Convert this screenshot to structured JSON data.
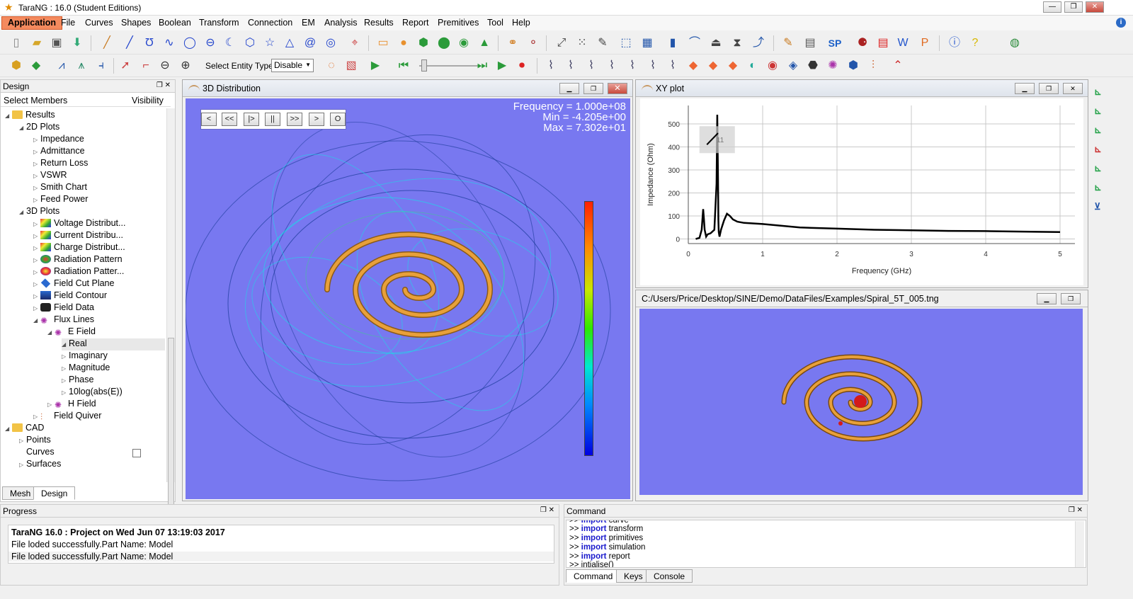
{
  "window": {
    "title": "TaraNG : 16.0 (Student Editions)"
  },
  "menu": [
    "Application",
    "File",
    "Curves",
    "Shapes",
    "Boolean",
    "Transform",
    "Connection",
    "EM",
    "Analysis",
    "Results",
    "Report",
    "Premitives",
    "Tool",
    "Help"
  ],
  "toolbar": {
    "select_entity_label": "Select Entity Type:",
    "select_entity_value": "Disable",
    "sp_label": "SP"
  },
  "design_panel": {
    "title": "Design",
    "col_members": "Select Members",
    "col_visibility": "Visibility",
    "tree": {
      "results": "Results",
      "plots2d": "2D Plots",
      "impedance": "Impedance",
      "admittance": "Admittance",
      "return_loss": "Return Loss",
      "vswr": "VSWR",
      "smith_chart": "Smith Chart",
      "feed_power": "Feed Power",
      "plots3d": "3D Plots",
      "voltage": "Voltage Distribut...",
      "current": "Current Distribu...",
      "charge": "Charge Distribut...",
      "radiation1": "Radiation Pattern",
      "radiation2": "Radiation Patter...",
      "field_cut": "Field Cut Plane",
      "field_contour": "Field Contour",
      "field_data": "Field Data",
      "flux_lines": "Flux Lines",
      "e_field": "E Field",
      "real": "Real",
      "imaginary": "Imaginary",
      "magnitude": "Magnitude",
      "phase": "Phase",
      "log": "10log(abs(E))",
      "h_field": "H Field",
      "field_quiver": "Field Quiver",
      "cad": "CAD",
      "points": "Points",
      "curves": "Curves",
      "surfaces": "Surfaces"
    },
    "tabs": [
      "Mesh",
      "Design"
    ]
  },
  "view3d": {
    "title": "3D Distribution",
    "playback": [
      "<",
      "<<",
      "|>",
      "||",
      ">>",
      ">",
      "O"
    ],
    "frequency": "Frequency = 1.000e+08",
    "min": "Min = -4.205e+00",
    "max": "Max = 7.302e+01"
  },
  "xyplot": {
    "title": "XY plot",
    "marker": "11"
  },
  "spiral_window": {
    "title": "C:/Users/Price/Desktop/SINE/Demo/DataFiles/Examples/Spiral_5T_005.tng"
  },
  "progress": {
    "title": "Progress",
    "lines": [
      "TaraNG 16.0 : Project on Wed Jun 07 13:19:03 2017",
      "File loded successfully.Part Name: Model",
      "File loded successfully.Part Name: Model"
    ]
  },
  "command": {
    "title": "Command",
    "lines": [
      {
        "p": ">>",
        "k": "import",
        "v": "curve"
      },
      {
        "p": ">>",
        "k": "import",
        "v": "transform"
      },
      {
        "p": ">>",
        "k": "import",
        "v": "primitives"
      },
      {
        "p": ">>",
        "k": "import",
        "v": "simulation"
      },
      {
        "p": ">>",
        "k": "import",
        "v": "report"
      },
      {
        "p": ">>",
        "k": "",
        "v": "intialise()"
      }
    ],
    "tabs": [
      "Command",
      "Keys",
      "Console"
    ]
  },
  "chart_data": {
    "type": "line",
    "title": "",
    "xlabel": "Frequency (GHz)",
    "ylabel": "Impedance (Ohm)",
    "xlim": [
      0,
      5.2
    ],
    "ylim": [
      -20,
      580
    ],
    "xticks": [
      0,
      1,
      2,
      3,
      4,
      5
    ],
    "yticks": [
      0,
      100,
      200,
      300,
      400,
      500
    ],
    "grid": true,
    "series": [
      {
        "name": "Impedance",
        "x": [
          0.1,
          0.15,
          0.18,
          0.2,
          0.21,
          0.22,
          0.24,
          0.26,
          0.3,
          0.35,
          0.38,
          0.39,
          0.4,
          0.405,
          0.41,
          0.42,
          0.44,
          0.48,
          0.52,
          0.56,
          0.6,
          0.66,
          0.75,
          1.0,
          1.5,
          2.0,
          2.5,
          3.0,
          3.5,
          4.0,
          4.5,
          5.0
        ],
        "y": [
          0,
          5,
          40,
          130,
          90,
          40,
          10,
          20,
          25,
          40,
          240,
          540,
          250,
          80,
          30,
          10,
          40,
          80,
          110,
          100,
          85,
          75,
          70,
          65,
          50,
          45,
          40,
          38,
          35,
          34,
          32,
          30
        ]
      }
    ]
  }
}
